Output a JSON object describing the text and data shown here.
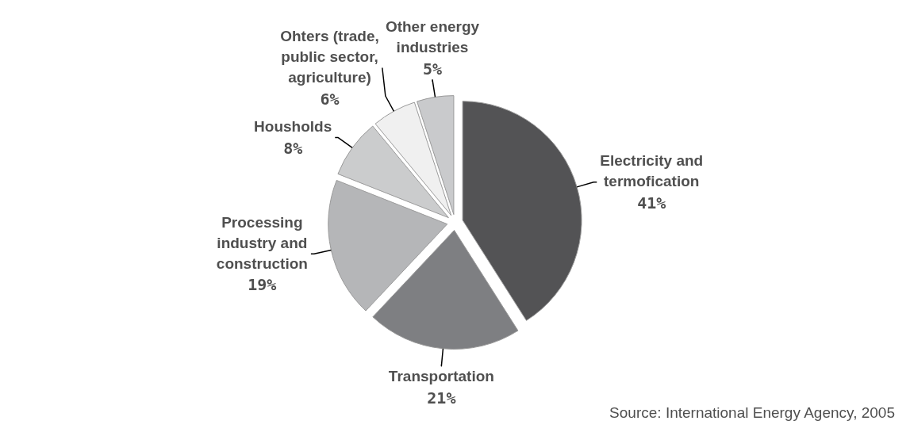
{
  "chart_data": {
    "type": "pie",
    "categories": [
      "Electricity and termofication",
      "Transportation",
      "Processing industry and construction",
      "Housholds",
      "Ohters (trade, public sector, agriculture)",
      "Other energy industries"
    ],
    "values": [
      41,
      21,
      19,
      8,
      6,
      5
    ],
    "value_labels": [
      "41%",
      "21%",
      "19%",
      "8%",
      "6%",
      "5%"
    ],
    "colors": [
      "#535355",
      "#7e7f82",
      "#b5b6b8",
      "#cbcccd",
      "#f0f0f0",
      "#c9cacc"
    ],
    "annotations": [
      "Source: International Energy Agency, 2005"
    ]
  }
}
